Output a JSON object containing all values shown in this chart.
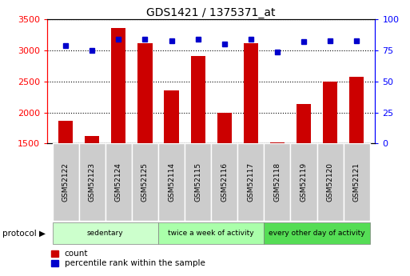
{
  "title": "GDS1421 / 1375371_at",
  "samples": [
    "GSM52122",
    "GSM52123",
    "GSM52124",
    "GSM52125",
    "GSM52114",
    "GSM52115",
    "GSM52116",
    "GSM52117",
    "GSM52118",
    "GSM52119",
    "GSM52120",
    "GSM52121"
  ],
  "counts": [
    1870,
    1620,
    3360,
    3110,
    2360,
    2910,
    1990,
    3110,
    1520,
    2140,
    2500,
    2580
  ],
  "percentiles": [
    79,
    75,
    84,
    84,
    83,
    84,
    80,
    84,
    74,
    82,
    83,
    83
  ],
  "ylim_left": [
    1500,
    3500
  ],
  "ylim_right": [
    0,
    100
  ],
  "yticks_left": [
    1500,
    2000,
    2500,
    3000,
    3500
  ],
  "yticks_right": [
    0,
    25,
    50,
    75,
    100
  ],
  "bar_color": "#cc0000",
  "dot_color": "#0000cc",
  "groups": [
    {
      "label": "sedentary",
      "start": 0,
      "end": 4,
      "color": "#ccffcc"
    },
    {
      "label": "twice a week of activity",
      "start": 4,
      "end": 8,
      "color": "#aaffaa"
    },
    {
      "label": "every other day of activity",
      "start": 8,
      "end": 12,
      "color": "#55dd55"
    }
  ],
  "sample_cell_color": "#cccccc",
  "protocol_label": "protocol",
  "legend_count": "count",
  "legend_percentile": "percentile rank within the sample",
  "bar_width": 0.55
}
